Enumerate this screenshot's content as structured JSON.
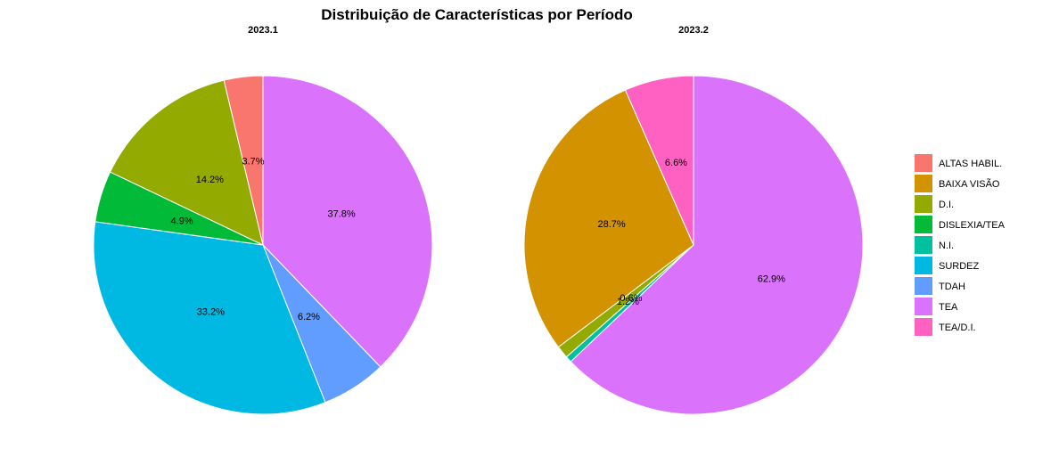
{
  "chart_data": {
    "type": "pie",
    "title": "Distribuição de Características por Período",
    "legend_position": "right",
    "legend": [
      {
        "label": "ALTAS HABIL.",
        "color": "#F8766D"
      },
      {
        "label": "BAIXA VISÃO",
        "color": "#D39200"
      },
      {
        "label": "D.I.",
        "color": "#93AA00"
      },
      {
        "label": "DISLEXIA/TEA",
        "color": "#00BA38"
      },
      {
        "label": "N.I.",
        "color": "#00C19F"
      },
      {
        "label": "SURDEZ",
        "color": "#00B9E3"
      },
      {
        "label": "TDAH",
        "color": "#619CFF"
      },
      {
        "label": "TEA",
        "color": "#DB72FB"
      },
      {
        "label": "TEA/D.I.",
        "color": "#FF61C3"
      }
    ],
    "facets": [
      {
        "name": "2023.1",
        "slices": [
          {
            "category": "TEA",
            "value": 37.8,
            "label": "37.8%"
          },
          {
            "category": "TDAH",
            "value": 6.2,
            "label": "6.2%"
          },
          {
            "category": "SURDEZ",
            "value": 33.2,
            "label": "33.2%"
          },
          {
            "category": "DISLEXIA/TEA",
            "value": 4.9,
            "label": "4.9%"
          },
          {
            "category": "D.I.",
            "value": 14.2,
            "label": "14.2%"
          },
          {
            "category": "ALTAS HABIL.",
            "value": 3.7,
            "label": "3.7%"
          }
        ]
      },
      {
        "name": "2023.2",
        "slices": [
          {
            "category": "TEA",
            "value": 62.9,
            "label": "62.9%"
          },
          {
            "category": "N.I.",
            "value": 0.6,
            "label": "0.6%"
          },
          {
            "category": "D.I.",
            "value": 1.2,
            "label": "1.2%"
          },
          {
            "category": "BAIXA VISÃO",
            "value": 28.7,
            "label": "28.7%"
          },
          {
            "category": "TEA/D.I.",
            "value": 6.6,
            "label": "6.6%"
          }
        ]
      }
    ]
  }
}
